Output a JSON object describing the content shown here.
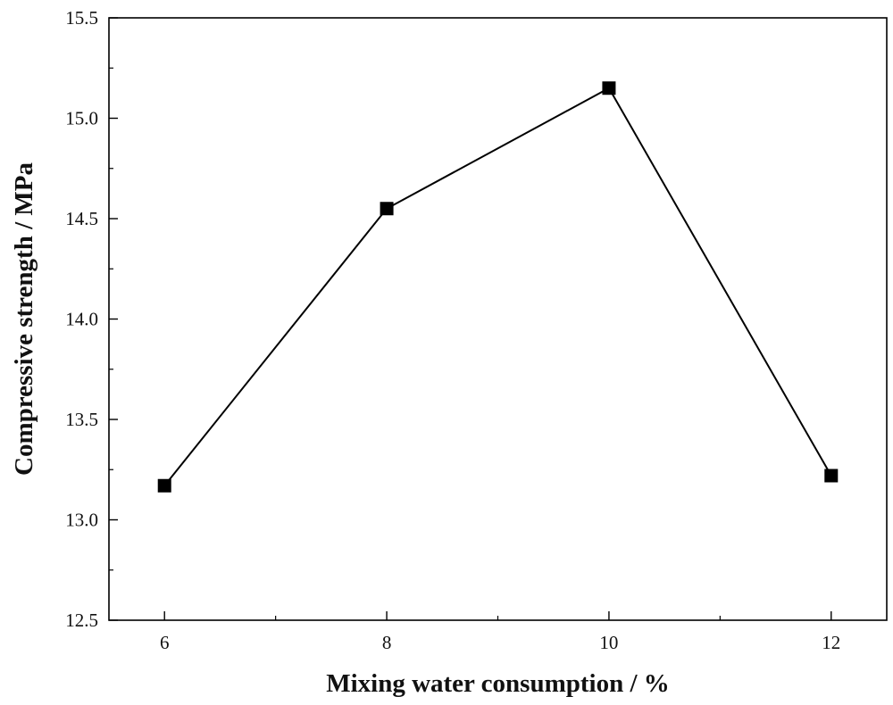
{
  "chart_data": {
    "type": "line",
    "title": "",
    "xlabel": "Mixing water consumption / %",
    "ylabel": "Compressive strength / MPa",
    "xlim": [
      5.5,
      12.5
    ],
    "ylim": [
      12.5,
      15.5
    ],
    "xticks": [
      6,
      8,
      10,
      12
    ],
    "xtick_labels": [
      "6",
      "8",
      "10",
      "12"
    ],
    "xminor": [
      7,
      9,
      11
    ],
    "yticks": [
      12.5,
      13.0,
      13.5,
      14.0,
      14.5,
      15.0,
      15.5
    ],
    "ytick_labels": [
      "12.5",
      "13.0",
      "13.5",
      "14.0",
      "14.5",
      "15.0",
      "15.5"
    ],
    "yminor": [
      12.75,
      13.25,
      13.75,
      14.25,
      14.75,
      15.25
    ],
    "grid": false,
    "marker": "square",
    "series": [
      {
        "name": "Compressive strength",
        "x": [
          6,
          8,
          10,
          12
        ],
        "values": [
          13.17,
          14.55,
          15.15,
          13.22
        ],
        "color": "#000000"
      }
    ]
  }
}
